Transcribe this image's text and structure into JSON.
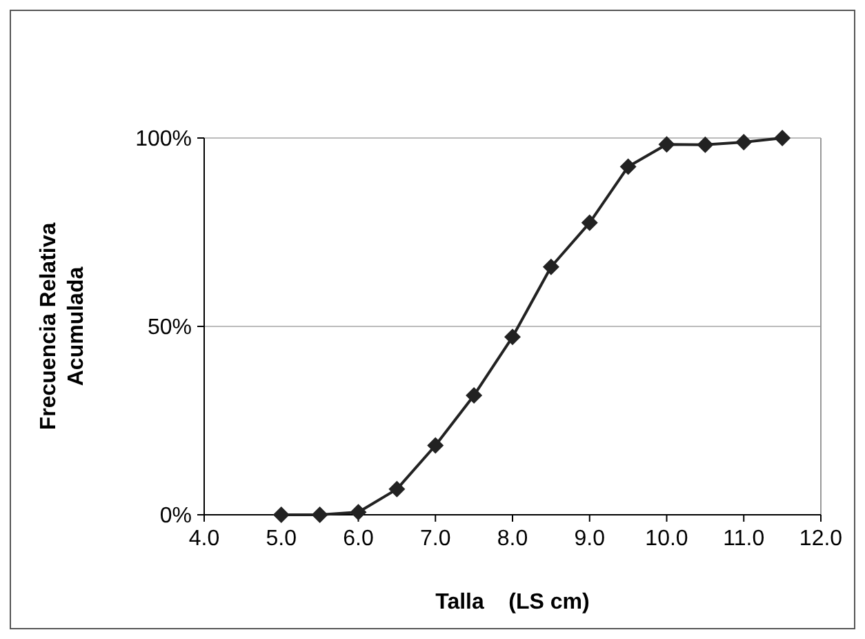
{
  "chart_data": {
    "type": "line",
    "xlabel": "Talla    (LS cm)",
    "ylabel": "Frecuencia Relativa\nAcumulada",
    "x": [
      5.0,
      5.5,
      6.0,
      6.5,
      7.0,
      7.5,
      8.0,
      8.5,
      9.0,
      9.5,
      10.0,
      10.5,
      11.0,
      11.5
    ],
    "series": [
      {
        "color": "#222222",
        "values": [
          0,
          0,
          0.7,
          6.8,
          18.4,
          31.7,
          47.2,
          65.8,
          77.5,
          92.4,
          98.3,
          98.2,
          98.9,
          100
        ]
      }
    ],
    "xlim": [
      4,
      12
    ],
    "xticks": [
      {
        "value": 4,
        "label": "4.0"
      },
      {
        "value": 5,
        "label": "5.0"
      },
      {
        "value": 6,
        "label": "6.0"
      },
      {
        "value": 7,
        "label": "7.0"
      },
      {
        "value": 8,
        "label": "8.0"
      },
      {
        "value": 9,
        "label": "9.0"
      },
      {
        "value": 10,
        "label": "10.0"
      },
      {
        "value": 11,
        "label": "11.0"
      },
      {
        "value": 12,
        "label": "12.0"
      }
    ],
    "ylim": [
      0,
      100
    ],
    "yticks": [
      {
        "value": 0,
        "label": "0%"
      },
      {
        "value": 50,
        "label": "50%"
      },
      {
        "value": 100,
        "label": "100%"
      }
    ],
    "grid": "y",
    "marker": "diamond",
    "line_style": "solid"
  }
}
